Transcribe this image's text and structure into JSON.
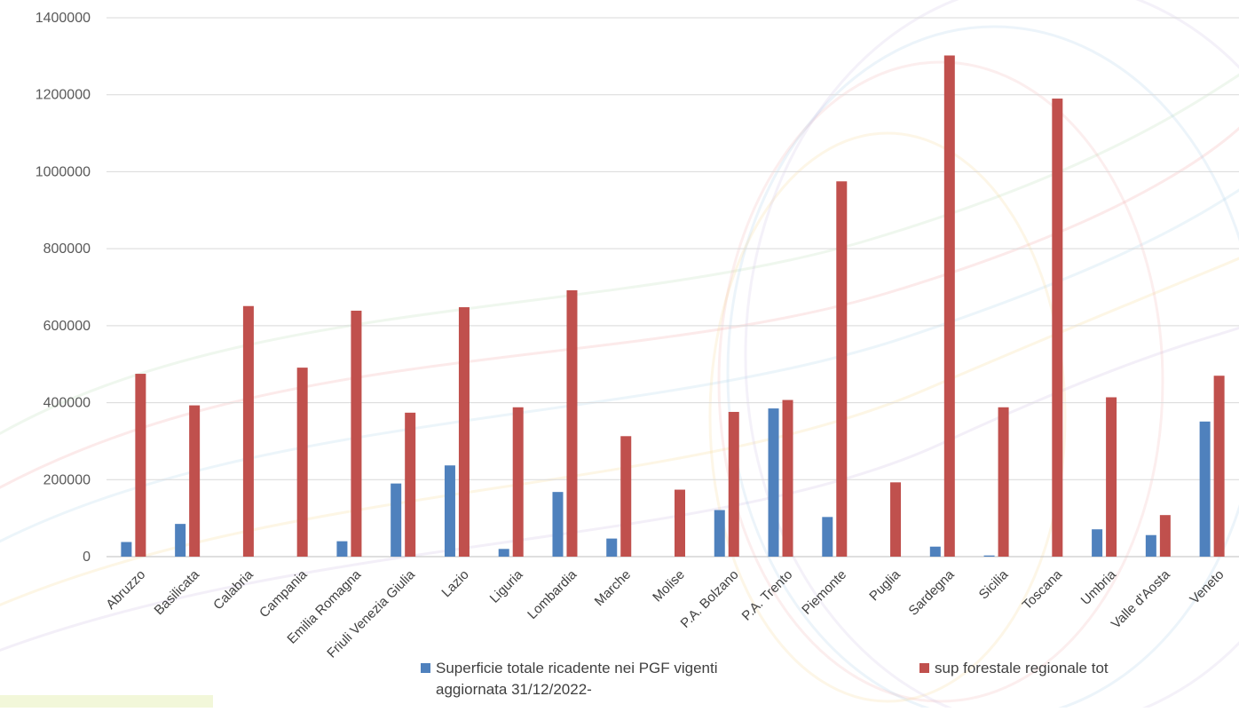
{
  "chart_data": {
    "type": "bar",
    "categories": [
      "Abruzzo",
      "Basilicata",
      "Calabria",
      "Campania",
      "Emilia Romagna",
      "Friuli Venezia Giulia",
      "Lazio",
      "Liguria",
      "Lombardia",
      "Marche",
      "Molise",
      "P.A. Bolzano",
      "P.A. Trento",
      "Piemonte",
      "Puglia",
      "Sardegna",
      "Sicilia",
      "Toscana",
      "Umbria",
      "Valle d'Aosta",
      "Veneto"
    ],
    "series": [
      {
        "name": "Superficie totale ricadente nei PGF vigenti aggiornata 31/12/2022-",
        "name_lines": [
          "Superficie totale ricadente nei PGF vigenti",
          "aggiornata 31/12/2022-"
        ],
        "color": "#4f81bd",
        "values": [
          38000,
          85000,
          0,
          0,
          40000,
          190000,
          237000,
          20000,
          168000,
          47000,
          0,
          121000,
          385000,
          103000,
          0,
          26000,
          3000,
          0,
          71000,
          56000,
          351000
        ]
      },
      {
        "name": "sup forestale regionale tot",
        "name_lines": [
          "sup forestale regionale tot"
        ],
        "color": "#c0504d",
        "values": [
          475000,
          393000,
          651000,
          491000,
          639000,
          374000,
          648000,
          388000,
          692000,
          313000,
          174000,
          376000,
          407000,
          975000,
          193000,
          1302000,
          388000,
          1190000,
          414000,
          108000,
          470000
        ]
      }
    ],
    "yticks": [
      "0",
      "200000",
      "400000",
      "600000",
      "800000",
      "1000000",
      "1200000",
      "1400000"
    ],
    "ylim": [
      0,
      1400000
    ],
    "grid": true,
    "legend_position": "bottom"
  }
}
